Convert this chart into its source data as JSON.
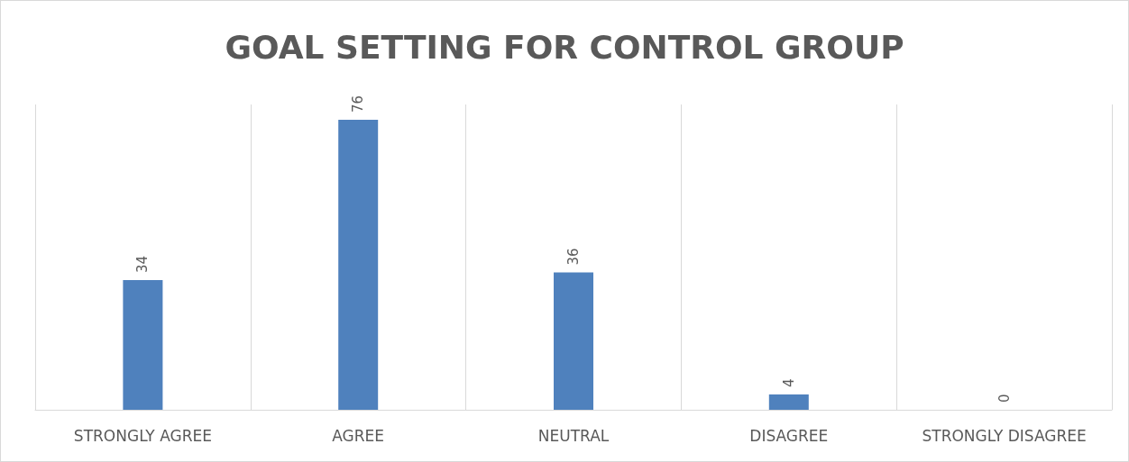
{
  "chart_data": {
    "type": "bar",
    "title": "GOAL SETTING FOR CONTROL GROUP",
    "categories": [
      "STRONGLY AGREE",
      "AGREE",
      "NEUTRAL",
      "DISAGREE",
      "STRONGLY DISAGREE"
    ],
    "values": [
      34,
      76,
      36,
      4,
      0
    ],
    "color": "#4f81bd",
    "data_labels": true,
    "grid": "x"
  }
}
